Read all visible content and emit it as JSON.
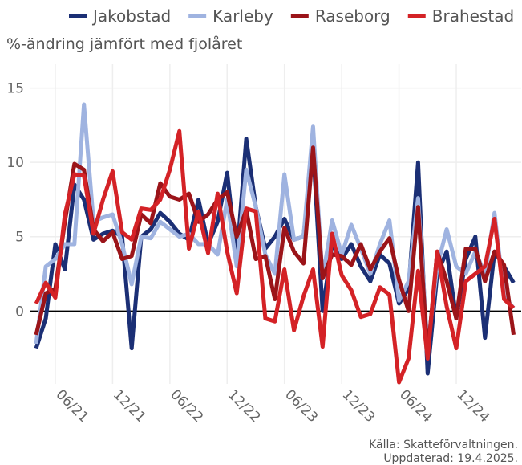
{
  "chart_data": {
    "type": "line",
    "subtitle": "%-ändring jämfört med fjolåret",
    "source": [
      "Källa: Skatteförvaltningen.",
      "Uppdaterad: 19.4.2025."
    ],
    "x": [
      4,
      5,
      6,
      7,
      8,
      9,
      10,
      11,
      12,
      13,
      14,
      15,
      16,
      17,
      18,
      19,
      20,
      21,
      22,
      23,
      24,
      25,
      26,
      27,
      28,
      29,
      30,
      31,
      32,
      33,
      34,
      35,
      36,
      37,
      38,
      39,
      40,
      41,
      42,
      43,
      44,
      45,
      46,
      47,
      48,
      49,
      50,
      51,
      52,
      53,
      54
    ],
    "xlim": [
      3.4,
      54.8
    ],
    "xticks": [
      {
        "value": 6,
        "label": "06/21"
      },
      {
        "value": 12,
        "label": "12/21"
      },
      {
        "value": 18,
        "label": "06/22"
      },
      {
        "value": 24,
        "label": "12/22"
      },
      {
        "value": 30,
        "label": "06/23"
      },
      {
        "value": 36,
        "label": "12/23"
      },
      {
        "value": 42,
        "label": "06/24"
      },
      {
        "value": 48,
        "label": "12/24"
      }
    ],
    "ylim": [
      -4.9,
      16.6
    ],
    "yticks": [
      0,
      5,
      10,
      15
    ],
    "grid": true,
    "legend": "top",
    "series": [
      {
        "name": "Jakobstad",
        "color": "#1b2f75",
        "values": [
          -2.5,
          -0.5,
          4.5,
          2.8,
          8.5,
          7.5,
          4.8,
          5.2,
          5.4,
          5.0,
          -2.5,
          5,
          5.5,
          6.6,
          6,
          5.2,
          4.8,
          7.5,
          4.5,
          6,
          9.3,
          3.5,
          11.6,
          7,
          4.2,
          5,
          6.2,
          4.8,
          5,
          11,
          0,
          4.5,
          3.5,
          4.5,
          3,
          2,
          3.8,
          3.2,
          0.5,
          1.5,
          10,
          -4.2,
          2.5,
          4,
          -0.5,
          3.5,
          5,
          -1.8,
          4,
          3,
          1.9
        ]
      },
      {
        "name": "Karleby",
        "color": "#9fb3e0",
        "values": [
          -2.2,
          3,
          3.5,
          4.5,
          4.5,
          13.9,
          6,
          6.3,
          6.5,
          4.5,
          1.8,
          5,
          4.9,
          6,
          5.5,
          5,
          5.2,
          4.5,
          4.5,
          3.8,
          7.5,
          3,
          9.5,
          7,
          3.8,
          2.5,
          9.2,
          4.8,
          5,
          12.4,
          2.2,
          6.1,
          3.8,
          5.8,
          4.2,
          2.5,
          4.5,
          6.1,
          0.7,
          2,
          7.6,
          -2.5,
          3,
          5.5,
          3,
          2.5,
          4,
          2.5,
          6.6,
          1,
          0.2
        ]
      },
      {
        "name": "Raseborg",
        "color": "#9b1419",
        "values": [
          -1.6,
          1.2,
          1.5,
          6,
          9.9,
          9.5,
          5.5,
          4.7,
          5.3,
          3.5,
          3.7,
          6.5,
          5.9,
          8.6,
          7.7,
          7.5,
          7.9,
          6,
          6.5,
          7.5,
          8,
          5,
          6.8,
          3.5,
          3.7,
          0.8,
          5.6,
          4,
          3.2,
          11,
          2.2,
          3.8,
          3.7,
          3.1,
          4.5,
          2.8,
          4,
          4.9,
          2.1,
          0,
          7,
          -3,
          4,
          2,
          -0.5,
          4.2,
          4.2,
          2,
          4,
          3.1,
          -1.6
        ]
      },
      {
        "name": "Brahestad",
        "color": "#d42226",
        "values": [
          0.5,
          1.9,
          0.9,
          6.5,
          9.2,
          9.1,
          5.2,
          7.5,
          9.4,
          5.3,
          4.8,
          6.9,
          6.8,
          7.5,
          9.5,
          12.1,
          4.2,
          6.7,
          3.9,
          7.9,
          4,
          1.2,
          6.9,
          6.7,
          -0.5,
          -0.7,
          2.8,
          -1.3,
          1,
          2.8,
          -2.4,
          5.2,
          2.4,
          1.4,
          -0.4,
          -0.2,
          1.6,
          1.1,
          -4.8,
          -3.2,
          2.7,
          -3.2,
          4,
          0.3,
          -2.5,
          2,
          2.5,
          3,
          6.2,
          0.8,
          0.2
        ]
      }
    ]
  }
}
